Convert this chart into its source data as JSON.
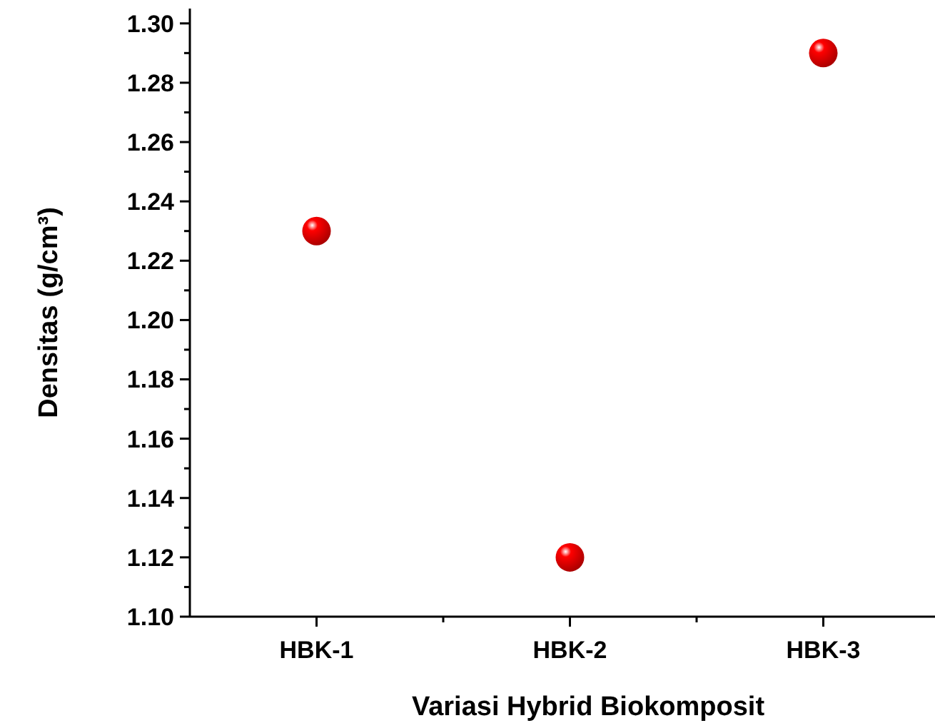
{
  "chart_data": {
    "type": "scatter",
    "xlabel": "Variasi Hybrid Biokomposit",
    "ylabel": "Densitas (g/cm³)",
    "categories": [
      "HBK-1",
      "HBK-2",
      "HBK-3"
    ],
    "series": [
      {
        "color": "#ff0000",
        "values": [
          1.23,
          1.12,
          1.29
        ]
      }
    ],
    "ylim": [
      1.1,
      1.305
    ],
    "yticks": [
      {
        "value": 1.1,
        "label": "1.10"
      },
      {
        "value": 1.12,
        "label": "1.12"
      },
      {
        "value": 1.14,
        "label": "1.14"
      },
      {
        "value": 1.16,
        "label": "1.16"
      },
      {
        "value": 1.18,
        "label": "1.18"
      },
      {
        "value": 1.2,
        "label": "1.20"
      },
      {
        "value": 1.22,
        "label": "1.22"
      },
      {
        "value": 1.24,
        "label": "1.24"
      },
      {
        "value": 1.26,
        "label": "1.26"
      },
      {
        "value": 1.28,
        "label": "1.28"
      },
      {
        "value": 1.3,
        "label": "1.30"
      }
    ],
    "marker": "circle",
    "grid": false
  }
}
